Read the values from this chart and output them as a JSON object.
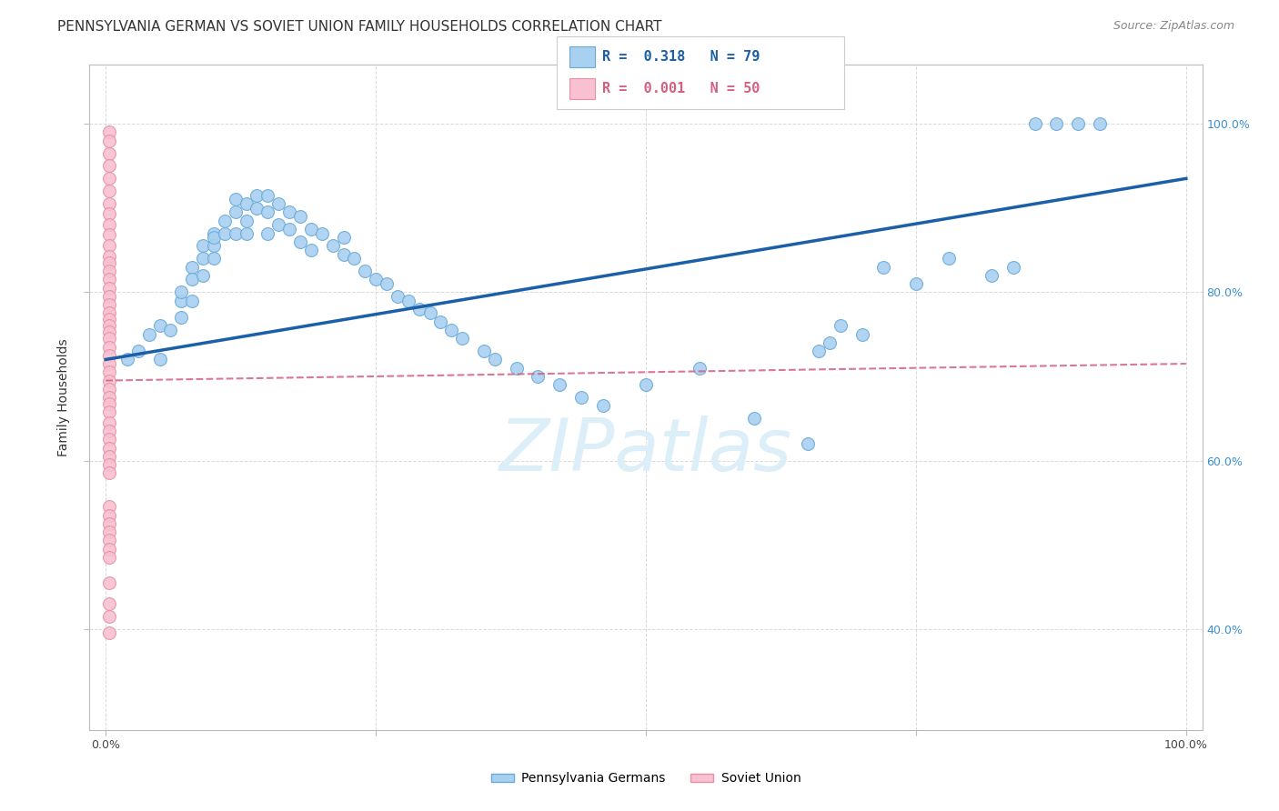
{
  "title": "PENNSYLVANIA GERMAN VS SOVIET UNION FAMILY HOUSEHOLDS CORRELATION CHART",
  "source": "Source: ZipAtlas.com",
  "ylabel": "Family Households",
  "legend_label_blue": "Pennsylvania Germans",
  "legend_label_pink": "Soviet Union",
  "blue_scatter_x": [
    0.02,
    0.03,
    0.04,
    0.05,
    0.05,
    0.06,
    0.07,
    0.07,
    0.07,
    0.08,
    0.08,
    0.08,
    0.09,
    0.09,
    0.09,
    0.1,
    0.1,
    0.1,
    0.1,
    0.11,
    0.11,
    0.12,
    0.12,
    0.12,
    0.13,
    0.13,
    0.13,
    0.14,
    0.14,
    0.15,
    0.15,
    0.15,
    0.16,
    0.16,
    0.17,
    0.17,
    0.18,
    0.18,
    0.19,
    0.19,
    0.2,
    0.21,
    0.22,
    0.22,
    0.23,
    0.24,
    0.25,
    0.26,
    0.27,
    0.28,
    0.29,
    0.3,
    0.31,
    0.32,
    0.33,
    0.35,
    0.36,
    0.38,
    0.4,
    0.42,
    0.44,
    0.46,
    0.5,
    0.55,
    0.6,
    0.65,
    0.66,
    0.67,
    0.68,
    0.7,
    0.72,
    0.75,
    0.78,
    0.82,
    0.84,
    0.86,
    0.88,
    0.9,
    0.92
  ],
  "blue_scatter_y": [
    0.72,
    0.73,
    0.75,
    0.76,
    0.72,
    0.755,
    0.79,
    0.8,
    0.77,
    0.83,
    0.815,
    0.79,
    0.855,
    0.84,
    0.82,
    0.87,
    0.855,
    0.865,
    0.84,
    0.885,
    0.87,
    0.91,
    0.895,
    0.87,
    0.905,
    0.885,
    0.87,
    0.915,
    0.9,
    0.915,
    0.895,
    0.87,
    0.905,
    0.88,
    0.895,
    0.875,
    0.89,
    0.86,
    0.875,
    0.85,
    0.87,
    0.855,
    0.865,
    0.845,
    0.84,
    0.825,
    0.815,
    0.81,
    0.795,
    0.79,
    0.78,
    0.775,
    0.765,
    0.755,
    0.745,
    0.73,
    0.72,
    0.71,
    0.7,
    0.69,
    0.675,
    0.665,
    0.69,
    0.71,
    0.65,
    0.62,
    0.73,
    0.74,
    0.76,
    0.75,
    0.83,
    0.81,
    0.84,
    0.82,
    0.83,
    1.0,
    1.0,
    1.0,
    1.0
  ],
  "pink_scatter_x": [
    0.003,
    0.003,
    0.003,
    0.003,
    0.003,
    0.003,
    0.003,
    0.003,
    0.003,
    0.003,
    0.003,
    0.003,
    0.003,
    0.003,
    0.003,
    0.003,
    0.003,
    0.003,
    0.003,
    0.003,
    0.003,
    0.003,
    0.003,
    0.003,
    0.003,
    0.003,
    0.003,
    0.003,
    0.003,
    0.003,
    0.003,
    0.003,
    0.003,
    0.003,
    0.003,
    0.003,
    0.003,
    0.003,
    0.003,
    0.003,
    0.003,
    0.003,
    0.003,
    0.003,
    0.003,
    0.003,
    0.003,
    0.003,
    0.003,
    0.003
  ],
  "pink_scatter_y": [
    0.99,
    0.98,
    0.965,
    0.95,
    0.935,
    0.92,
    0.905,
    0.893,
    0.88,
    0.868,
    0.855,
    0.843,
    0.835,
    0.825,
    0.815,
    0.805,
    0.795,
    0.785,
    0.775,
    0.768,
    0.76,
    0.753,
    0.745,
    0.735,
    0.725,
    0.715,
    0.705,
    0.695,
    0.685,
    0.675,
    0.668,
    0.658,
    0.645,
    0.635,
    0.625,
    0.615,
    0.605,
    0.595,
    0.585,
    0.545,
    0.535,
    0.525,
    0.515,
    0.505,
    0.495,
    0.485,
    0.455,
    0.43,
    0.415,
    0.395
  ],
  "blue_line_x": [
    0.0,
    1.0
  ],
  "blue_line_y_start": 0.72,
  "blue_line_y_end": 0.935,
  "pink_line_x": [
    0.0,
    1.0
  ],
  "pink_line_y_start": 0.695,
  "pink_line_y_end": 0.715,
  "scatter_size": 100,
  "blue_color": "#a8d0f0",
  "blue_edge_color": "#6aaad8",
  "pink_color": "#f8c0d0",
  "pink_edge_color": "#e890a8",
  "blue_line_color": "#1a5fa8",
  "pink_line_color": "#d46080",
  "grid_color": "#d0d0d0",
  "watermark_text": "ZIPatlas",
  "watermark_color": "#dceef8",
  "background_color": "#ffffff",
  "title_fontsize": 11,
  "source_fontsize": 9,
  "label_fontsize": 10,
  "tick_fontsize": 9,
  "xlim": [
    -0.015,
    1.015
  ],
  "ylim": [
    0.28,
    1.07
  ]
}
